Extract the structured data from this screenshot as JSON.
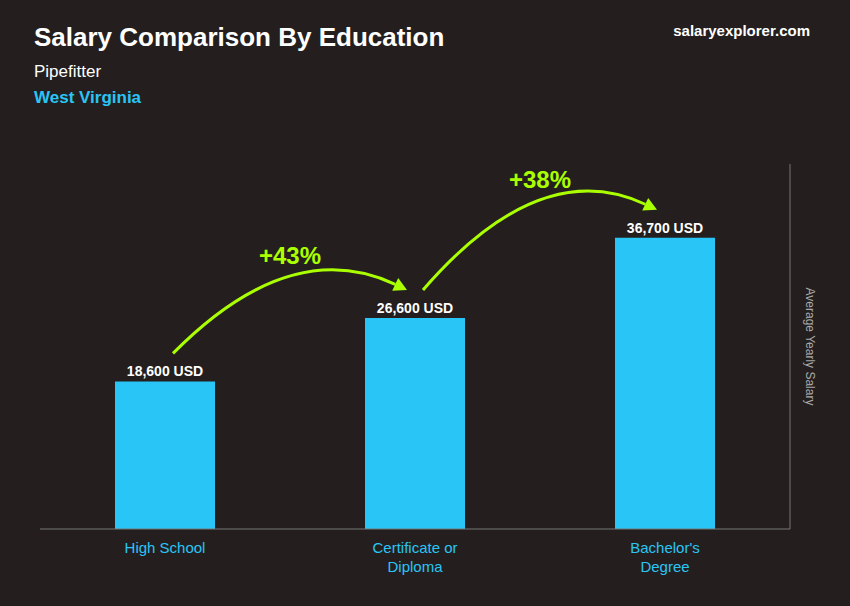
{
  "chart_data": {
    "type": "bar",
    "title": "Salary Comparison By Education",
    "subtitle": [
      "Pipefitter",
      "West Virginia"
    ],
    "categories": [
      "High School",
      "Certificate or\nDiploma",
      "Bachelor's\nDegree"
    ],
    "values": [
      18600,
      26600,
      36700
    ],
    "value_labels": [
      "18,600 USD",
      "26,600 USD",
      "36,700 USD"
    ],
    "data_labels": true,
    "color": "#29c5f6",
    "ylim": [
      0,
      46000
    ],
    "yticks": [],
    "ylabel": "Average Yearly Salary",
    "grid": false,
    "tick_labels": "x",
    "annotations": [
      {
        "text": "+43%",
        "from": "High School",
        "to": "Certificate or\nDiploma",
        "color": "#aaff00"
      },
      {
        "text": "+38%",
        "from": "Certificate or\nDiploma",
        "to": "Bachelor's\nDegree",
        "color": "#aaff00"
      },
      {
        "text": "salaryexplorer.com"
      }
    ]
  }
}
